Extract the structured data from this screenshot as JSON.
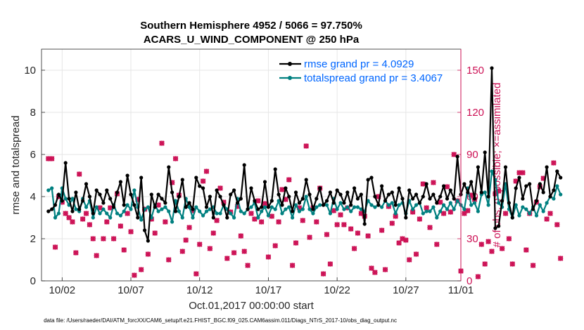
{
  "chart_data": {
    "type": "line",
    "title": "Southern Hemisphere 4952 / 5066 = 97.750%",
    "subtitle": "ACARS_U_WIND_COMPONENT @ 250 hPa",
    "xlabel": "Oct.01,2017 00:00:00 start",
    "ylabel": "rmse and totalspread",
    "ylabel_right": "# of obs: o=possible; ×=assimilated",
    "xlim": [
      0.5,
      31.0
    ],
    "ylim": [
      0,
      11
    ],
    "ylim_right": [
      0,
      165
    ],
    "x_ticks": [
      {
        "value": 2,
        "label": "10/02"
      },
      {
        "value": 7,
        "label": "10/07"
      },
      {
        "value": 12,
        "label": "10/12"
      },
      {
        "value": 17,
        "label": "10/17"
      },
      {
        "value": 22,
        "label": "10/22"
      },
      {
        "value": 27,
        "label": "10/27"
      },
      {
        "value": 31,
        "label": "11/01"
      }
    ],
    "y_ticks": [
      "0",
      "2",
      "4",
      "6",
      "8",
      "10"
    ],
    "y_ticks_right": [
      "0",
      "30",
      "60",
      "90",
      "120",
      "150"
    ],
    "legend": {
      "position": "top-right",
      "entries": [
        "rmse grand pr = 4.0929",
        "totalspread grand pr = 3.4067"
      ]
    },
    "x_start": 1.0,
    "x_step": 0.25,
    "series": [
      {
        "name": "rmse grand pr = 4.0929",
        "color": "#000000",
        "values": [
          3.3,
          3.4,
          3.6,
          4.1,
          3.8,
          5.6,
          3.9,
          3.3,
          4.2,
          3.4,
          3.8,
          4.6,
          4.0,
          3.2,
          4.3,
          4.1,
          3.7,
          4.3,
          3.9,
          3.5,
          4.2,
          4.7,
          3.6,
          5.0,
          4.1,
          3.6,
          3.0,
          4.9,
          2.4,
          1.9,
          4.1,
          3.5,
          4.1,
          3.9,
          3.7,
          5.4,
          4.2,
          3.3,
          4.0,
          4.8,
          3.5,
          3.7,
          3.4,
          4.9,
          4.5,
          4.4,
          3.5,
          4.0,
          3.0,
          4.3,
          4.0,
          3.6,
          3.0,
          4.1,
          4.3,
          3.7,
          3.9,
          5.5,
          3.4,
          4.4,
          3.8,
          3.4,
          3.5,
          4.7,
          3.5,
          3.8,
          5.3,
          4.1,
          3.6,
          4.4,
          4.0,
          3.3,
          4.2,
          3.7,
          3.9,
          4.8,
          4.1,
          3.4,
          3.9,
          4.4,
          3.6,
          3.8,
          4.2,
          3.7,
          4.3,
          4.1,
          3.7,
          4.2,
          3.6,
          4.4,
          3.9,
          4.1,
          2.7,
          4.8,
          4.9,
          4.0,
          3.6,
          4.5,
          3.8,
          4.1,
          4.2,
          3.6,
          4.4,
          3.9,
          3.0,
          4.3,
          3.9,
          4.1,
          3.7,
          4.0,
          4.6,
          3.9,
          4.1,
          3.7,
          4.0,
          4.5,
          3.9,
          4.3,
          3.9,
          5.9,
          4.1,
          4.6,
          4.2,
          4.7,
          3.9,
          5.4,
          4.2,
          6.1,
          4.0,
          10.1,
          2.5,
          2.6,
          3.8,
          5.4,
          3.7,
          3.0,
          4.4,
          4.9,
          3.9,
          4.5,
          4.6,
          3.4,
          3.8,
          4.6,
          4.2,
          5.4,
          4.0,
          4.3,
          5.2,
          4.9
        ]
      },
      {
        "name": "totalspread grand pr = 3.4067",
        "color": "#008080",
        "values": [
          4.3,
          4.4,
          3.0,
          3.2,
          4.4,
          3.9,
          3.6,
          3.9,
          3.4,
          3.3,
          3.9,
          3.5,
          3.8,
          3.0,
          3.5,
          3.2,
          3.4,
          3.2,
          3.0,
          3.6,
          3.2,
          3.1,
          3.3,
          3.6,
          3.4,
          4.3,
          3.5,
          2.9,
          3.4,
          3.5,
          3.0,
          3.6,
          3.3,
          3.4,
          3.5,
          3.3,
          2.8,
          3.8,
          3.3,
          3.0,
          3.9,
          3.5,
          3.0,
          3.5,
          3.3,
          3.1,
          3.3,
          3.4,
          3.5,
          3.2,
          3.2,
          3.6,
          3.4,
          3.2,
          3.0,
          3.9,
          3.3,
          3.2,
          3.4,
          3.5,
          3.7,
          3.0,
          3.3,
          3.5,
          3.1,
          3.5,
          3.4,
          3.8,
          3.2,
          3.4,
          3.5,
          3.0,
          3.6,
          3.3,
          3.4,
          4.0,
          3.4,
          3.2,
          3.5,
          3.6,
          3.6,
          3.6,
          3.2,
          3.9,
          3.4,
          3.7,
          3.4,
          3.5,
          3.3,
          3.5,
          3.5,
          3.4,
          3.3,
          3.8,
          3.6,
          3.5,
          3.6,
          3.5,
          3.8,
          3.6,
          3.7,
          3.2,
          3.6,
          3.7,
          3.2,
          3.8,
          3.4,
          3.6,
          3.7,
          3.2,
          3.3,
          3.3,
          3.5,
          3.0,
          3.3,
          3.6,
          3.4,
          3.7,
          3.4,
          3.8,
          3.6,
          3.4,
          4.4,
          3.6,
          3.7,
          3.3,
          4.1,
          4.2,
          3.6,
          5.2,
          4.8,
          3.7,
          3.5,
          4.6,
          3.4,
          3.0,
          3.6,
          3.1,
          3.5,
          3.4,
          3.2,
          3.5,
          3.1,
          3.6,
          3.3,
          3.7,
          4.0,
          3.9,
          4.5,
          4.1
        ]
      }
    ],
    "obs_possible": {
      "name": "o=possible",
      "color": "#cc1155",
      "values": [
        87,
        87,
        24,
        60,
        56,
        48,
        45,
        42,
        20,
        76,
        44,
        48,
        40,
        30,
        18,
        52,
        30,
        42,
        52,
        30,
        62,
        39,
        22,
        48,
        35,
        4,
        58,
        8,
        51,
        19,
        44,
        34,
        54,
        98,
        42,
        15,
        70,
        87,
        61,
        21,
        29,
        38,
        50,
        5,
        26,
        71,
        78,
        23,
        34,
        43,
        66,
        56,
        16,
        49,
        20,
        53,
        32,
        21,
        11,
        48,
        44,
        57,
        42,
        55,
        17,
        46,
        25,
        42,
        65,
        58,
        72,
        11,
        27,
        52,
        43,
        96,
        31,
        52,
        42,
        66,
        5,
        33,
        12,
        50,
        40,
        47,
        40,
        52,
        37,
        23,
        34,
        48,
        46,
        32,
        9,
        6,
        60,
        36,
        8,
        53,
        41,
        46,
        27,
        30,
        29,
        15,
        49,
        19,
        44,
        69,
        52,
        38,
        70,
        26,
        56,
        48,
        67,
        49,
        90,
        57,
        7,
        48,
        50,
        61,
        58,
        3,
        26,
        12,
        28,
        21,
        62,
        64,
        23,
        48,
        30,
        12,
        71,
        77,
        77,
        22,
        48,
        11,
        56,
        67,
        73,
        44,
        48,
        84,
        40,
        16
      ]
    },
    "obs_assimilated": {
      "name": "×=assimilated",
      "color": "#cc1155",
      "values": [
        87,
        87,
        24,
        60,
        56,
        48,
        45,
        42,
        20,
        76,
        44,
        48,
        40,
        30,
        18,
        52,
        30,
        42,
        52,
        30,
        62,
        39,
        22,
        48,
        35,
        4,
        58,
        8,
        51,
        19,
        44,
        34,
        54,
        98,
        42,
        15,
        70,
        87,
        61,
        21,
        29,
        38,
        50,
        5,
        26,
        71,
        78,
        23,
        34,
        43,
        66,
        56,
        16,
        49,
        20,
        53,
        32,
        21,
        11,
        48,
        44,
        57,
        42,
        55,
        17,
        46,
        25,
        42,
        65,
        58,
        72,
        11,
        27,
        52,
        43,
        96,
        31,
        52,
        42,
        66,
        5,
        33,
        12,
        50,
        40,
        47,
        40,
        52,
        37,
        23,
        34,
        48,
        46,
        32,
        9,
        6,
        60,
        36,
        8,
        53,
        41,
        46,
        27,
        30,
        29,
        15,
        49,
        19,
        44,
        69,
        52,
        38,
        70,
        26,
        56,
        48,
        67,
        49,
        90,
        57,
        7,
        48,
        50,
        61,
        58,
        3,
        26,
        12,
        28,
        21,
        62,
        64,
        23,
        48,
        30,
        12,
        71,
        77,
        77,
        22,
        48,
        11,
        56,
        67,
        73,
        44,
        48,
        84,
        40,
        16
      ]
    }
  },
  "footer": "data file: /Users/raeder/DAI/ATM_forcXX/CAM6_setup/f.e21.FHIST_BGC.f09_025.CAM6assim.011/Diags_NTrS_2017-10/obs_diag_output.nc"
}
